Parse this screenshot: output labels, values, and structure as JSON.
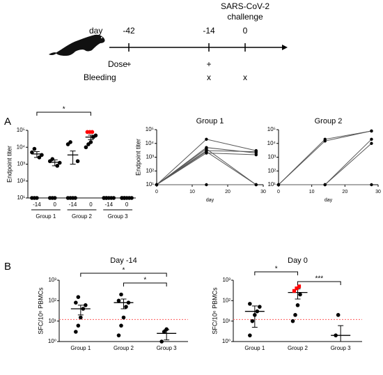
{
  "timeline": {
    "day_label": "day",
    "days": [
      "-42",
      "-14",
      "0"
    ],
    "challenge": [
      "SARS-CoV-2",
      "challenge"
    ],
    "dose_label": "Dose",
    "dose": [
      "+",
      "+",
      null
    ],
    "bleeding_label": "Bleeding",
    "bleeding": [
      null,
      "x",
      "x"
    ]
  },
  "panel_labels": [
    "A",
    "B"
  ],
  "chart_data": [
    {
      "type": "dot",
      "ylabel": "Endpoint titer",
      "log_y": true,
      "ylim": [
        10,
        100000
      ],
      "yticks": [
        {
          "value": 10,
          "label": "10¹"
        },
        {
          "value": 100,
          "label": "10²"
        },
        {
          "value": 1000,
          "label": "10³"
        },
        {
          "value": 10000,
          "label": "10⁴"
        },
        {
          "value": 100000,
          "label": "10⁵"
        }
      ],
      "categories": [
        "-14",
        "0",
        "-14",
        "0",
        "-14",
        "0"
      ],
      "groups": [
        "Group 1",
        "Group 2",
        "Group 3"
      ],
      "series": [
        {
          "color": "#000000",
          "marker": "circle",
          "values": [
            [
              10,
              10,
              10,
              2500,
              3500,
              5000,
              8000
            ],
            [
              10,
              10,
              10,
              800,
              1200,
              1500,
              2000
            ],
            [
              10,
              10,
              10,
              10,
              1500,
              15000,
              20000
            ],
            [
              10000,
              15000,
              20000,
              40000,
              50000
            ],
            [
              10,
              10,
              10,
              10,
              10,
              10,
              10
            ],
            [
              10,
              10,
              10,
              10,
              10,
              10,
              10
            ]
          ]
        },
        {
          "color": "#ff0000",
          "marker": "circle",
          "values": [
            [],
            [],
            [],
            [
              80000,
              80000,
              80000
            ],
            [],
            []
          ]
        }
      ],
      "means": [
        4000,
        1300,
        3500,
        40000,
        10,
        10
      ],
      "errors": [
        1500,
        500,
        2500,
        12000,
        0,
        0
      ],
      "significance": [
        {
          "pair": [
            0,
            3
          ],
          "label": "*"
        }
      ]
    },
    {
      "type": "line",
      "title": "Group 1",
      "xlabel": "day",
      "ylabel": "Endpoint titer",
      "log_y": true,
      "x": [
        0,
        14,
        28
      ],
      "xlim": [
        0,
        30
      ],
      "xticks": [
        0,
        10,
        20,
        30
      ],
      "ylim": [
        10,
        100000
      ],
      "yticks": [
        {
          "value": 10,
          "label": "10¹"
        },
        {
          "value": 100,
          "label": "10²"
        },
        {
          "value": 1000,
          "label": "10³"
        },
        {
          "value": 10000,
          "label": "10⁴"
        },
        {
          "value": 100000,
          "label": "10⁵"
        }
      ],
      "series": [
        {
          "color": "#555555",
          "values": [
            10,
            20000,
            3000
          ]
        },
        {
          "color": "#555555",
          "values": [
            10,
            5000,
            2000
          ]
        },
        {
          "color": "#555555",
          "values": [
            10,
            4000,
            10
          ]
        },
        {
          "color": "#555555",
          "values": [
            10,
            3000,
            2500
          ]
        },
        {
          "color": "#555555",
          "values": [
            10,
            2500,
            10
          ]
        },
        {
          "color": "#555555",
          "values": [
            10,
            2000,
            1500
          ]
        },
        {
          "color": "#555555",
          "values": [
            10,
            10,
            10
          ]
        }
      ]
    },
    {
      "type": "line",
      "title": "Group 2",
      "xlabel": "day",
      "log_y": true,
      "x": [
        0,
        14,
        28
      ],
      "xlim": [
        0,
        30
      ],
      "xticks": [
        0,
        10,
        20,
        30
      ],
      "ylim": [
        10,
        100000
      ],
      "yticks": [
        {
          "value": 10,
          "label": "10¹"
        },
        {
          "value": 100,
          "label": "10²"
        },
        {
          "value": 1000,
          "label": "10³"
        },
        {
          "value": 10000,
          "label": "10⁴"
        },
        {
          "value": 100000,
          "label": "10⁵"
        }
      ],
      "series": [
        {
          "color": "#555555",
          "values": [
            10,
            20000,
            80000
          ]
        },
        {
          "color": "#555555",
          "values": [
            10,
            15000,
            80000
          ]
        },
        {
          "color": "#555555",
          "values": [
            10,
            10,
            20000
          ]
        },
        {
          "color": "#555555",
          "values": [
            10,
            10,
            10000
          ]
        },
        {
          "color": "#555555",
          "values": [
            10,
            10,
            10
          ]
        }
      ]
    },
    {
      "type": "dot",
      "title": "Day -14",
      "ylabel": "SFC/10⁶ PBMCs",
      "log_y": true,
      "ylim": [
        1,
        1000
      ],
      "yticks": [
        {
          "value": 1,
          "label": "10⁰"
        },
        {
          "value": 10,
          "label": "10¹"
        },
        {
          "value": 100,
          "label": "10²"
        },
        {
          "value": 1000,
          "label": "10³"
        }
      ],
      "categories": [
        "Group 1",
        "Group 2",
        "Group 3"
      ],
      "series": [
        {
          "color": "#000000",
          "marker": "circle",
          "values": [
            [
              3,
              6,
              15,
              40,
              60,
              80,
              150
            ],
            [
              2,
              6,
              15,
              50,
              80,
              100,
              200
            ],
            [
              1,
              3,
              4
            ]
          ]
        }
      ],
      "means": [
        40,
        80,
        2.5
      ],
      "errors": [
        20,
        40,
        1.3
      ],
      "reference_line": {
        "value": 12,
        "color": "#ff5a5a"
      },
      "significance": [
        {
          "pair": [
            0,
            2
          ],
          "label": "*"
        },
        {
          "pair": [
            1,
            2
          ],
          "label": "*"
        }
      ]
    },
    {
      "type": "dot",
      "title": "Day 0",
      "ylabel": "SFC/10⁶ PBMCs",
      "log_y": true,
      "ylim": [
        1,
        1000
      ],
      "yticks": [
        {
          "value": 1,
          "label": "10⁰"
        },
        {
          "value": 10,
          "label": "10¹"
        },
        {
          "value": 100,
          "label": "10²"
        },
        {
          "value": 1000,
          "label": "10³"
        }
      ],
      "categories": [
        "Group 1",
        "Group 2",
        "Group 3"
      ],
      "series": [
        {
          "color": "#000000",
          "marker": "circle",
          "values": [
            [
              2,
              10,
              20,
              30,
              50,
              70
            ],
            [
              10,
              20,
              60,
              200
            ],
            [
              2,
              20
            ]
          ]
        },
        {
          "color": "#ff0000",
          "marker": "square",
          "values": [
            [],
            [
              300,
              400,
              500
            ],
            []
          ]
        }
      ],
      "means": [
        30,
        250,
        2
      ],
      "errors": [
        25,
        130,
        4
      ],
      "reference_line": {
        "value": 12,
        "color": "#ff5a5a"
      },
      "significance": [
        {
          "pair": [
            0,
            1
          ],
          "label": "*"
        },
        {
          "pair": [
            1,
            2
          ],
          "label": "***"
        }
      ]
    }
  ]
}
